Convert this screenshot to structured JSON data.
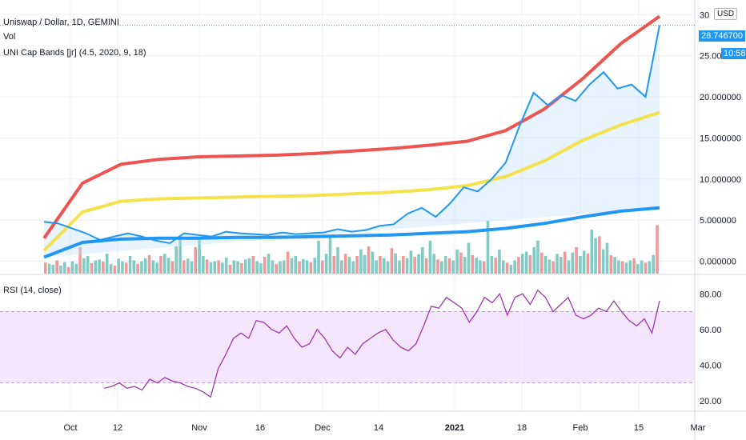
{
  "header": {
    "symbol": "Uniswap / Dollar, 1D, GEMINI",
    "vol_label": "Vol",
    "indicator_label": "UNI Cap Bands [jr] (4.5, 2020, 9, 18)",
    "rsi_label": "RSI (14, close)",
    "currency": "USD"
  },
  "price_badge": {
    "value": "28.746700",
    "countdown": "10:58"
  },
  "chart_data": [
    {
      "type": "line",
      "title": "Uniswap / Dollar, 1D, GEMINI",
      "y_ticks": [
        "0.000000",
        "5.000000",
        "10.000000",
        "15.000000",
        "20.000000",
        "25.000000",
        "30"
      ],
      "ylim": [
        -1.5,
        31
      ],
      "x_ticks": [
        "Oct",
        "12",
        "Nov",
        "16",
        "Dec",
        "14",
        "2021",
        "18",
        "Feb",
        "15",
        "Mar"
      ],
      "series": [
        {
          "name": "Upper band",
          "color": "#ef5350",
          "values": [
            2.8,
            9.5,
            11.8,
            12.4,
            12.7,
            12.8,
            12.9,
            13.1,
            13.4,
            13.7,
            14.1,
            14.6,
            15.9,
            18.5,
            22.2,
            26.5,
            29.8
          ]
        },
        {
          "name": "Middle band",
          "color": "#f5e24b",
          "values": [
            1.3,
            6.0,
            7.3,
            7.6,
            7.7,
            7.8,
            7.9,
            8.0,
            8.2,
            8.4,
            8.7,
            9.2,
            10.3,
            12.2,
            14.7,
            16.6,
            18.1
          ]
        },
        {
          "name": "Lower band",
          "color": "#2196f3",
          "values": [
            0.5,
            2.3,
            2.7,
            2.8,
            2.8,
            2.9,
            2.9,
            3.0,
            3.1,
            3.2,
            3.4,
            3.6,
            4.0,
            4.6,
            5.4,
            6.1,
            6.5
          ]
        },
        {
          "name": "Price",
          "color": "#2196f3",
          "values": [
            4.8,
            4.6,
            4.0,
            3.4,
            2.6,
            3.0,
            3.4,
            3.0,
            2.5,
            2.2,
            3.4,
            3.2,
            3.0,
            3.6,
            3.4,
            3.3,
            3.2,
            3.5,
            3.3,
            3.4,
            3.5,
            3.9,
            3.6,
            3.8,
            4.3,
            4.5,
            5.8,
            6.5,
            5.4,
            7.0,
            9.0,
            8.5,
            10.0,
            12.0,
            16.5,
            20.5,
            19.0,
            20.2,
            19.5,
            21.5,
            23.0,
            21.0,
            21.5,
            20.0,
            28.7
          ]
        }
      ],
      "volume": [
        25,
        22,
        20,
        30,
        18,
        26,
        15,
        28,
        22,
        60,
        35,
        40,
        24,
        30,
        32,
        27,
        45,
        22,
        18,
        34,
        28,
        25,
        40,
        30,
        22,
        28,
        35,
        42,
        30,
        25,
        40,
        45,
        36,
        28,
        62,
        80,
        30,
        34,
        28,
        60,
        80,
        40,
        32,
        26,
        28,
        30,
        25,
        36,
        20,
        30,
        28,
        24,
        32,
        35,
        40,
        28,
        24,
        38,
        45,
        30,
        22,
        28,
        30,
        50,
        35,
        40,
        28,
        33,
        30,
        26,
        36,
        75,
        30,
        45,
        88,
        40,
        60,
        30,
        45,
        38,
        28,
        40,
        55,
        42,
        62,
        50,
        30,
        40,
        35,
        28,
        58,
        46,
        30,
        40,
        35,
        52,
        38,
        44,
        60,
        35,
        75,
        45,
        32,
        28,
        40,
        35,
        30,
        55,
        48,
        38,
        70,
        42,
        36,
        30,
        28,
        120,
        40,
        36,
        55,
        30,
        25,
        20,
        30,
        38,
        45,
        50,
        42,
        60,
        75,
        48,
        40,
        32,
        28,
        45,
        38,
        50,
        30,
        48,
        60,
        40,
        52,
        46,
        100,
        80,
        85,
        55,
        70,
        42,
        38,
        30,
        28,
        25,
        30,
        35,
        22,
        30,
        25,
        28,
        42,
        110
      ],
      "volume_colors_up_pattern": "alternating"
    },
    {
      "type": "line",
      "title": "RSI (14, close)",
      "y_ticks": [
        "20.00",
        "40.00",
        "60.00",
        "80.00"
      ],
      "ylim": [
        15,
        90
      ],
      "band": [
        30,
        70
      ],
      "series": [
        {
          "name": "RSI",
          "color": "#9c27b0",
          "values": [
            27,
            28,
            30,
            27,
            28,
            26,
            32,
            30,
            33,
            31,
            30,
            28,
            27,
            25,
            22,
            38,
            46,
            55,
            58,
            55,
            65,
            64,
            60,
            58,
            62,
            55,
            50,
            52,
            60,
            55,
            48,
            44,
            50,
            46,
            52,
            55,
            58,
            60,
            54,
            50,
            48,
            52,
            62,
            73,
            72,
            78,
            75,
            72,
            64,
            70,
            78,
            75,
            80,
            68,
            78,
            80,
            74,
            82,
            78,
            70,
            74,
            78,
            68,
            66,
            68,
            72,
            70,
            76,
            70,
            65,
            62,
            66,
            58,
            76
          ]
        }
      ]
    }
  ],
  "axis_labels": {
    "price_ticks": [
      "30",
      "25.000000",
      "20.000000",
      "15.000000",
      "10.000000",
      "5.000000",
      "0.000000"
    ],
    "rsi_ticks": [
      "80.00",
      "60.00",
      "40.00",
      "20.00"
    ],
    "time_ticks": [
      "Oct",
      "12",
      "Nov",
      "16",
      "Dec",
      "14",
      "2021",
      "18",
      "Feb",
      "15",
      "Mar"
    ]
  },
  "colors": {
    "grid": "#eef0f3",
    "rsi_band": "#f3e5fb",
    "up_vol": "#80cbc4",
    "down_vol": "#ef9a9a"
  }
}
